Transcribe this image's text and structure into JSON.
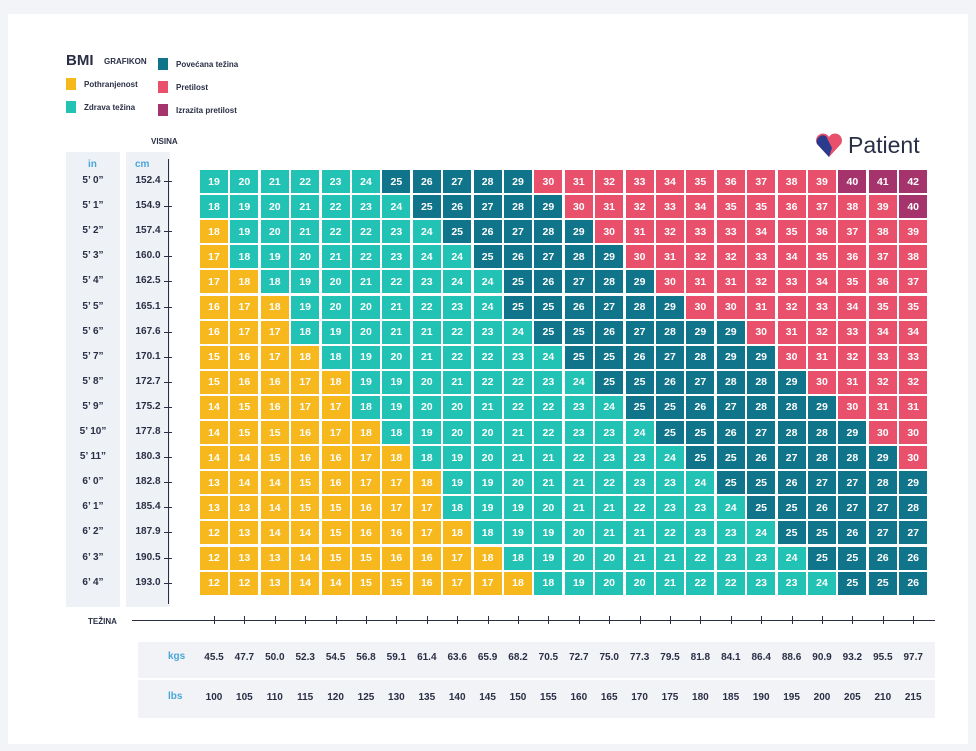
{
  "legend": {
    "title": "BMI",
    "subtitle": "GRAFIKON",
    "items": [
      {
        "label": "Pothranjenost",
        "color": "#f6b81c"
      },
      {
        "label": "Zdrava težina",
        "color": "#22c3b4"
      },
      {
        "label": "Povećana težina",
        "color": "#10758b"
      },
      {
        "label": "Pretilost",
        "color": "#e9506b"
      },
      {
        "label": "Izrazita pretilost",
        "color": "#a5346c"
      }
    ]
  },
  "brand": "Patient",
  "height_axis": {
    "title": "VISINA",
    "in_label": "in",
    "cm_label": "cm"
  },
  "weight_axis": {
    "title": "TEŽINA",
    "kgs_label": "kgs",
    "lbs_label": "lbs",
    "kgs": [
      "45.5",
      "47.7",
      "50.0",
      "52.3",
      "54.5",
      "56.8",
      "59.1",
      "61.4",
      "63.6",
      "65.9",
      "68.2",
      "70.5",
      "72.7",
      "75.0",
      "77.3",
      "79.5",
      "81.8",
      "84.1",
      "86.4",
      "88.6",
      "90.9",
      "93.2",
      "95.5",
      "97.7"
    ],
    "lbs": [
      100,
      105,
      110,
      115,
      120,
      125,
      130,
      135,
      140,
      145,
      150,
      155,
      160,
      165,
      170,
      175,
      180,
      185,
      190,
      195,
      200,
      205,
      210,
      215
    ]
  },
  "rows": [
    {
      "in": "5’ 0”",
      "cm": "152.4",
      "values": [
        19,
        20,
        21,
        22,
        23,
        24,
        25,
        26,
        27,
        28,
        29,
        30,
        31,
        32,
        33,
        34,
        35,
        36,
        37,
        38,
        39,
        40,
        41,
        42
      ],
      "levels": [
        1,
        1,
        1,
        1,
        1,
        1,
        2,
        2,
        2,
        2,
        2,
        3,
        3,
        3,
        3,
        3,
        3,
        3,
        3,
        3,
        3,
        4,
        4,
        4
      ]
    },
    {
      "in": "5’ 1”",
      "cm": "154.9",
      "values": [
        18,
        19,
        20,
        21,
        22,
        23,
        24,
        25,
        26,
        27,
        28,
        29,
        30,
        31,
        32,
        33,
        34,
        35,
        35,
        36,
        37,
        38,
        39,
        40
      ],
      "levels": [
        1,
        1,
        1,
        1,
        1,
        1,
        1,
        2,
        2,
        2,
        2,
        2,
        3,
        3,
        3,
        3,
        3,
        3,
        3,
        3,
        3,
        3,
        3,
        4
      ]
    },
    {
      "in": "5’ 2”",
      "cm": "157.4",
      "values": [
        18,
        19,
        20,
        21,
        22,
        22,
        23,
        24,
        25,
        26,
        27,
        28,
        29,
        30,
        31,
        32,
        33,
        33,
        34,
        35,
        36,
        37,
        38,
        39
      ],
      "levels": [
        0,
        1,
        1,
        1,
        1,
        1,
        1,
        1,
        2,
        2,
        2,
        2,
        2,
        3,
        3,
        3,
        3,
        3,
        3,
        3,
        3,
        3,
        3,
        3
      ]
    },
    {
      "in": "5’ 3”",
      "cm": "160.0",
      "values": [
        17,
        18,
        19,
        20,
        21,
        22,
        23,
        24,
        24,
        25,
        26,
        27,
        28,
        29,
        30,
        31,
        32,
        32,
        33,
        34,
        35,
        36,
        37,
        38
      ],
      "levels": [
        0,
        1,
        1,
        1,
        1,
        1,
        1,
        1,
        1,
        2,
        2,
        2,
        2,
        2,
        3,
        3,
        3,
        3,
        3,
        3,
        3,
        3,
        3,
        3
      ]
    },
    {
      "in": "5’ 4”",
      "cm": "162.5",
      "values": [
        17,
        18,
        18,
        19,
        20,
        21,
        22,
        23,
        24,
        24,
        25,
        26,
        27,
        28,
        29,
        30,
        31,
        31,
        32,
        33,
        34,
        35,
        36,
        37
      ],
      "levels": [
        0,
        0,
        1,
        1,
        1,
        1,
        1,
        1,
        1,
        1,
        2,
        2,
        2,
        2,
        2,
        3,
        3,
        3,
        3,
        3,
        3,
        3,
        3,
        3
      ]
    },
    {
      "in": "5’ 5”",
      "cm": "165.1",
      "values": [
        16,
        17,
        18,
        19,
        20,
        20,
        21,
        22,
        23,
        24,
        25,
        25,
        26,
        27,
        28,
        29,
        30,
        30,
        31,
        32,
        33,
        34,
        35,
        35
      ],
      "levels": [
        0,
        0,
        0,
        1,
        1,
        1,
        1,
        1,
        1,
        1,
        2,
        2,
        2,
        2,
        2,
        2,
        3,
        3,
        3,
        3,
        3,
        3,
        3,
        3
      ]
    },
    {
      "in": "5’ 6”",
      "cm": "167.6",
      "values": [
        16,
        17,
        17,
        18,
        19,
        20,
        21,
        21,
        22,
        23,
        24,
        25,
        25,
        26,
        27,
        28,
        29,
        29,
        30,
        31,
        32,
        33,
        34,
        34
      ],
      "levels": [
        0,
        0,
        0,
        1,
        1,
        1,
        1,
        1,
        1,
        1,
        1,
        2,
        2,
        2,
        2,
        2,
        2,
        2,
        3,
        3,
        3,
        3,
        3,
        3
      ]
    },
    {
      "in": "5’ 7”",
      "cm": "170.1",
      "values": [
        15,
        16,
        17,
        18,
        18,
        19,
        20,
        21,
        22,
        22,
        23,
        24,
        25,
        25,
        26,
        27,
        28,
        29,
        29,
        30,
        31,
        32,
        33,
        33
      ],
      "levels": [
        0,
        0,
        0,
        0,
        1,
        1,
        1,
        1,
        1,
        1,
        1,
        1,
        2,
        2,
        2,
        2,
        2,
        2,
        2,
        3,
        3,
        3,
        3,
        3
      ]
    },
    {
      "in": "5’ 8”",
      "cm": "172.7",
      "values": [
        15,
        16,
        16,
        17,
        18,
        19,
        19,
        20,
        21,
        22,
        22,
        23,
        24,
        25,
        25,
        26,
        27,
        28,
        28,
        29,
        30,
        31,
        32,
        32
      ],
      "levels": [
        0,
        0,
        0,
        0,
        0,
        1,
        1,
        1,
        1,
        1,
        1,
        1,
        1,
        2,
        2,
        2,
        2,
        2,
        2,
        2,
        3,
        3,
        3,
        3
      ]
    },
    {
      "in": "5’ 9”",
      "cm": "175.2",
      "values": [
        14,
        15,
        16,
        17,
        17,
        18,
        19,
        20,
        20,
        21,
        22,
        22,
        23,
        24,
        25,
        25,
        26,
        27,
        28,
        28,
        29,
        30,
        31,
        31
      ],
      "levels": [
        0,
        0,
        0,
        0,
        0,
        1,
        1,
        1,
        1,
        1,
        1,
        1,
        1,
        1,
        2,
        2,
        2,
        2,
        2,
        2,
        2,
        3,
        3,
        3
      ]
    },
    {
      "in": "5’ 10”",
      "cm": "177.8",
      "values": [
        14,
        15,
        15,
        16,
        17,
        18,
        18,
        19,
        20,
        20,
        21,
        22,
        23,
        23,
        24,
        25,
        25,
        26,
        27,
        28,
        28,
        29,
        30,
        30
      ],
      "levels": [
        0,
        0,
        0,
        0,
        0,
        0,
        1,
        1,
        1,
        1,
        1,
        1,
        1,
        1,
        1,
        2,
        2,
        2,
        2,
        2,
        2,
        2,
        3,
        3
      ]
    },
    {
      "in": "5’ 11”",
      "cm": "180.3",
      "values": [
        14,
        14,
        15,
        16,
        16,
        17,
        18,
        18,
        19,
        20,
        21,
        21,
        22,
        23,
        23,
        24,
        25,
        25,
        26,
        27,
        28,
        28,
        29,
        30
      ],
      "levels": [
        0,
        0,
        0,
        0,
        0,
        0,
        0,
        1,
        1,
        1,
        1,
        1,
        1,
        1,
        1,
        1,
        2,
        2,
        2,
        2,
        2,
        2,
        2,
        3
      ]
    },
    {
      "in": "6’ 0”",
      "cm": "182.8",
      "values": [
        13,
        14,
        14,
        15,
        16,
        17,
        17,
        18,
        19,
        19,
        20,
        21,
        21,
        22,
        23,
        23,
        24,
        25,
        25,
        26,
        27,
        27,
        28,
        29
      ],
      "levels": [
        0,
        0,
        0,
        0,
        0,
        0,
        0,
        0,
        1,
        1,
        1,
        1,
        1,
        1,
        1,
        1,
        1,
        2,
        2,
        2,
        2,
        2,
        2,
        2
      ]
    },
    {
      "in": "6’ 1”",
      "cm": "185.4",
      "values": [
        13,
        13,
        14,
        15,
        15,
        16,
        17,
        17,
        18,
        19,
        19,
        20,
        21,
        21,
        22,
        23,
        23,
        24,
        25,
        25,
        26,
        27,
        27,
        28
      ],
      "levels": [
        0,
        0,
        0,
        0,
        0,
        0,
        0,
        0,
        1,
        1,
        1,
        1,
        1,
        1,
        1,
        1,
        1,
        1,
        2,
        2,
        2,
        2,
        2,
        2
      ]
    },
    {
      "in": "6’ 2”",
      "cm": "187.9",
      "values": [
        12,
        13,
        14,
        14,
        15,
        16,
        16,
        17,
        18,
        18,
        19,
        19,
        20,
        21,
        21,
        22,
        23,
        23,
        24,
        25,
        25,
        26,
        27,
        27
      ],
      "levels": [
        0,
        0,
        0,
        0,
        0,
        0,
        0,
        0,
        0,
        1,
        1,
        1,
        1,
        1,
        1,
        1,
        1,
        1,
        1,
        2,
        2,
        2,
        2,
        2
      ]
    },
    {
      "in": "6’ 3”",
      "cm": "190.5",
      "values": [
        12,
        13,
        13,
        14,
        15,
        15,
        16,
        16,
        17,
        18,
        18,
        19,
        20,
        20,
        21,
        21,
        22,
        23,
        23,
        24,
        25,
        25,
        26,
        26
      ],
      "levels": [
        0,
        0,
        0,
        0,
        0,
        0,
        0,
        0,
        0,
        0,
        1,
        1,
        1,
        1,
        1,
        1,
        1,
        1,
        1,
        1,
        2,
        2,
        2,
        2
      ]
    },
    {
      "in": "6’ 4”",
      "cm": "193.0",
      "values": [
        12,
        12,
        13,
        14,
        14,
        15,
        15,
        16,
        17,
        17,
        18,
        18,
        19,
        20,
        20,
        21,
        22,
        22,
        23,
        23,
        24,
        25,
        25,
        26
      ],
      "levels": [
        0,
        0,
        0,
        0,
        0,
        0,
        0,
        0,
        0,
        0,
        0,
        1,
        1,
        1,
        1,
        1,
        1,
        1,
        1,
        1,
        1,
        2,
        2,
        2
      ]
    }
  ]
}
